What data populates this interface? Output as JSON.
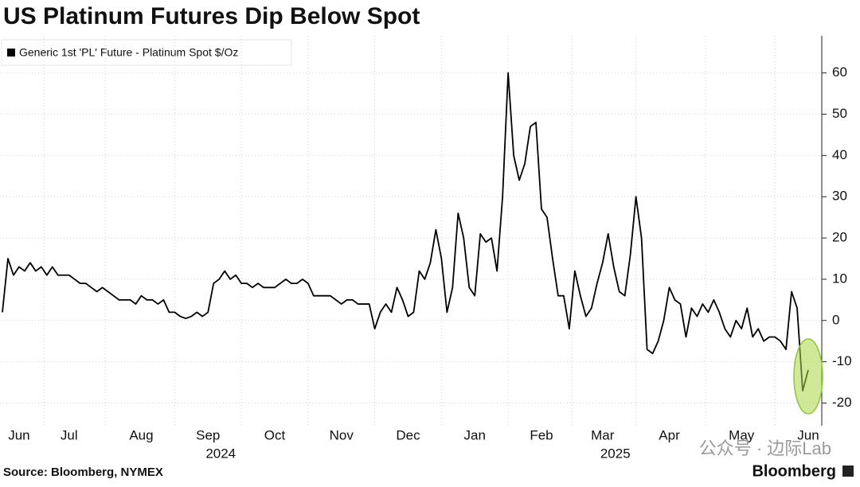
{
  "chart_data": {
    "type": "line",
    "title": "US Platinum Futures Dip Below Spot",
    "source": "Source: Bloomberg, NYMEX",
    "brand": "Bloomberg",
    "watermark": "公众号 · 边际Lab",
    "categories": [
      null,
      null,
      null,
      "Jun",
      null,
      null,
      null,
      null,
      null,
      null,
      null,
      null,
      "Jul",
      null,
      null,
      null,
      null,
      null,
      null,
      null,
      null,
      null,
      null,
      null,
      null,
      "Aug",
      null,
      null,
      null,
      null,
      null,
      null,
      null,
      null,
      null,
      null,
      null,
      "Sep",
      null,
      null,
      null,
      null,
      null,
      null,
      null,
      null,
      null,
      null,
      null,
      "Oct",
      null,
      null,
      null,
      null,
      null,
      null,
      null,
      null,
      null,
      null,
      null,
      "Nov",
      null,
      null,
      null,
      null,
      null,
      null,
      null,
      null,
      null,
      null,
      null,
      "Dec",
      null,
      null,
      null,
      null,
      null,
      null,
      null,
      null,
      null,
      null,
      null,
      "Jan",
      null,
      null,
      null,
      null,
      null,
      null,
      null,
      null,
      null,
      null,
      null,
      "Feb",
      null,
      null,
      null,
      null,
      null,
      null,
      null,
      null,
      null,
      null,
      "Mar",
      null,
      null,
      null,
      null,
      null,
      null,
      null,
      null,
      null,
      null,
      null,
      "Apr",
      null,
      null,
      null,
      null,
      null,
      null,
      null,
      null,
      null,
      null,
      null,
      null,
      "May",
      null,
      null,
      null,
      null,
      null,
      null,
      null,
      null,
      null,
      null,
      null,
      "Jun"
    ],
    "category_years": [
      null,
      null,
      null,
      null,
      null,
      null,
      null,
      null,
      null,
      null,
      null,
      null,
      null,
      null,
      null,
      null,
      null,
      null,
      null,
      null,
      null,
      null,
      null,
      null,
      null,
      null,
      null,
      null,
      null,
      null,
      null,
      null,
      null,
      null,
      null,
      null,
      null,
      "2024",
      null,
      null,
      null,
      null,
      null,
      null,
      null,
      null,
      null,
      null,
      null,
      null,
      null,
      null,
      null,
      null,
      null,
      null,
      null,
      null,
      null,
      null,
      null,
      null,
      null,
      null,
      null,
      null,
      null,
      null,
      null,
      null,
      null,
      null,
      null,
      null,
      null,
      null,
      null,
      null,
      null,
      null,
      null,
      null,
      null,
      null,
      null,
      null,
      null,
      null,
      null,
      null,
      null,
      null,
      null,
      null,
      null,
      null,
      null,
      null,
      null,
      null,
      null,
      null,
      null,
      null,
      null,
      null,
      null,
      null,
      "2025",
      null,
      null,
      null,
      null,
      null,
      null,
      null,
      null,
      null,
      null,
      null,
      null,
      null,
      null,
      null,
      null,
      null,
      null,
      null,
      null,
      null,
      null,
      null,
      null,
      null,
      null,
      null,
      null,
      null,
      null,
      null,
      null,
      null,
      null,
      null,
      null
    ],
    "series": [
      {
        "name": "Generic 1st 'PL' Future - Platinum Spot $/Oz",
        "color": "#000000",
        "values": [
          2,
          15,
          11,
          13,
          12,
          14,
          12,
          13,
          11,
          13,
          11,
          11,
          11,
          10,
          9,
          9,
          8,
          7,
          8,
          7,
          6,
          5,
          5,
          5,
          4,
          6,
          5,
          5,
          4,
          5,
          2,
          2,
          1,
          0.5,
          1,
          2,
          1,
          2,
          9,
          10,
          12,
          10,
          11,
          9,
          9,
          8,
          9,
          8,
          8,
          8,
          9,
          10,
          9,
          9,
          10,
          9,
          6,
          6,
          6,
          6,
          5,
          4,
          5,
          5,
          4,
          4,
          4,
          -2,
          2,
          4,
          2,
          8,
          5,
          1,
          2,
          12,
          10,
          14,
          22,
          15,
          2,
          8,
          26,
          20,
          8,
          6,
          21,
          19,
          20,
          12,
          30,
          60,
          40,
          34,
          38,
          47,
          48,
          27,
          25,
          15,
          6,
          6,
          -2,
          12,
          6,
          1,
          3,
          9,
          14,
          21,
          13,
          7,
          6,
          16,
          30,
          20,
          -7,
          -8,
          -5,
          0,
          8,
          5,
          4,
          -4,
          3,
          1,
          4,
          2,
          5,
          2,
          -2,
          -4,
          0,
          -2,
          3,
          -4,
          -2,
          -5,
          -4,
          -4,
          -5,
          -7,
          7,
          3,
          -17,
          -12
        ]
      }
    ],
    "ylim": [
      -25.5,
      69
    ],
    "yticks": [
      -20,
      -10,
      0,
      10,
      20,
      30,
      40,
      50,
      60
    ],
    "grid": true
  }
}
